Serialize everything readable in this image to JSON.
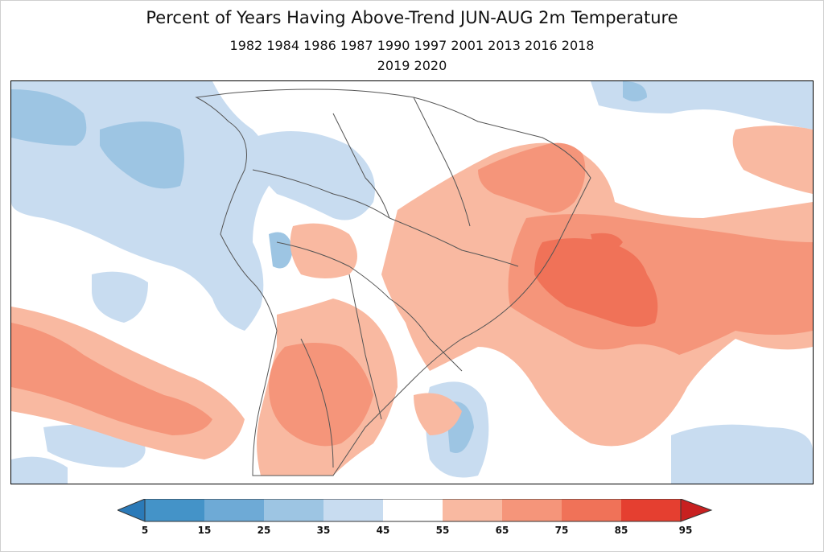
{
  "title": "Percent of Years Having Above-Trend JUN-AUG 2m Temperature",
  "years_line1": "1982 1984 1986 1987 1990 1997 2001 2013 2016 2018",
  "years_line2": "2019 2020",
  "colorbar": {
    "ticks": [
      "5",
      "15",
      "25",
      "35",
      "45",
      "55",
      "65",
      "75",
      "85",
      "95"
    ],
    "colors": [
      "#2b7ab8",
      "#4493c8",
      "#6eaad6",
      "#9dc5e3",
      "#c8dcf0",
      "#ffffff",
      "#f9b9a1",
      "#f5957a",
      "#f07258",
      "#e53f30",
      "#c82020"
    ]
  },
  "colors": {
    "c15_25": "#6eaad6",
    "c25_35": "#9dc5e3",
    "c35_45": "#c8dcf0",
    "c55_65": "#f9b9a1",
    "c65_75": "#f5957a",
    "c75_85": "#f07258",
    "border": "#555555"
  }
}
